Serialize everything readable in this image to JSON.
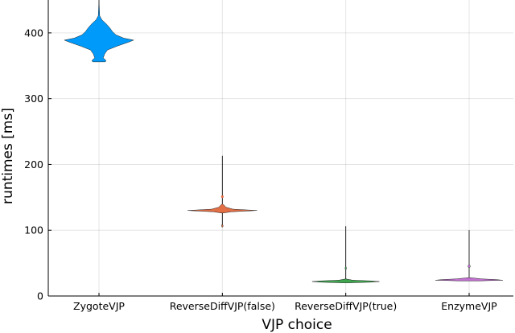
{
  "chart_data": {
    "type": "violin",
    "title": "",
    "xlabel": "VJP choice",
    "ylabel": "runtimes [ms]",
    "ylim": [
      0,
      450
    ],
    "yticks": [
      0,
      100,
      200,
      300,
      400
    ],
    "grid": true,
    "legend": "none",
    "categories": [
      "ZygoteVJP",
      "ReverseDiffVJP(false)",
      "ReverseDiffVJP(true)",
      "EnzymeVJP"
    ],
    "series": [
      {
        "category": "ZygoteVJP",
        "color": "#009AFA",
        "min": 356,
        "max": 450,
        "density": [
          [
            356,
            0.18
          ],
          [
            358,
            0.2
          ],
          [
            362,
            0.12
          ],
          [
            368,
            0.16
          ],
          [
            374,
            0.24
          ],
          [
            380,
            0.52
          ],
          [
            386,
            0.84
          ],
          [
            389,
            0.98
          ],
          [
            392,
            0.7
          ],
          [
            397,
            0.48
          ],
          [
            402,
            0.38
          ],
          [
            408,
            0.3
          ],
          [
            414,
            0.2
          ],
          [
            420,
            0.08
          ],
          [
            426,
            0.02
          ],
          [
            450,
            0.0
          ]
        ],
        "outliers": []
      },
      {
        "category": "ReverseDiffVJP(false)",
        "color": "#E26F46",
        "min": 105,
        "max": 213,
        "density": [
          [
            105,
            0.015
          ],
          [
            107,
            0.02
          ],
          [
            110,
            0.0
          ],
          [
            126,
            0.0
          ],
          [
            128,
            0.25
          ],
          [
            130,
            0.98
          ],
          [
            132,
            0.3
          ],
          [
            135,
            0.1
          ],
          [
            138,
            0.05
          ],
          [
            140,
            0.0
          ],
          [
            213,
            0.0
          ]
        ],
        "outliers": [
          151
        ]
      },
      {
        "category": "ReverseDiffVJP(true)",
        "color": "#3EA44E",
        "min": 20,
        "max": 106,
        "density": [
          [
            20,
            0.1
          ],
          [
            21,
            0.7
          ],
          [
            22,
            0.95
          ],
          [
            23,
            0.7
          ],
          [
            24,
            0.2
          ],
          [
            26,
            0.0
          ],
          [
            40,
            0.0
          ],
          [
            41,
            0.018
          ],
          [
            43,
            0.018
          ],
          [
            45,
            0.0
          ],
          [
            106,
            0.0
          ]
        ],
        "outliers": []
      },
      {
        "category": "EnzymeVJP",
        "color": "#C371D2",
        "min": 23,
        "max": 100,
        "density": [
          [
            23,
            0.3
          ],
          [
            24,
            0.95
          ],
          [
            25,
            0.75
          ],
          [
            26,
            0.35
          ],
          [
            28,
            0.0
          ],
          [
            43,
            0.0
          ],
          [
            44,
            0.03
          ],
          [
            46,
            0.03
          ],
          [
            48,
            0.0
          ],
          [
            100,
            0.0
          ]
        ],
        "outliers": []
      }
    ]
  }
}
